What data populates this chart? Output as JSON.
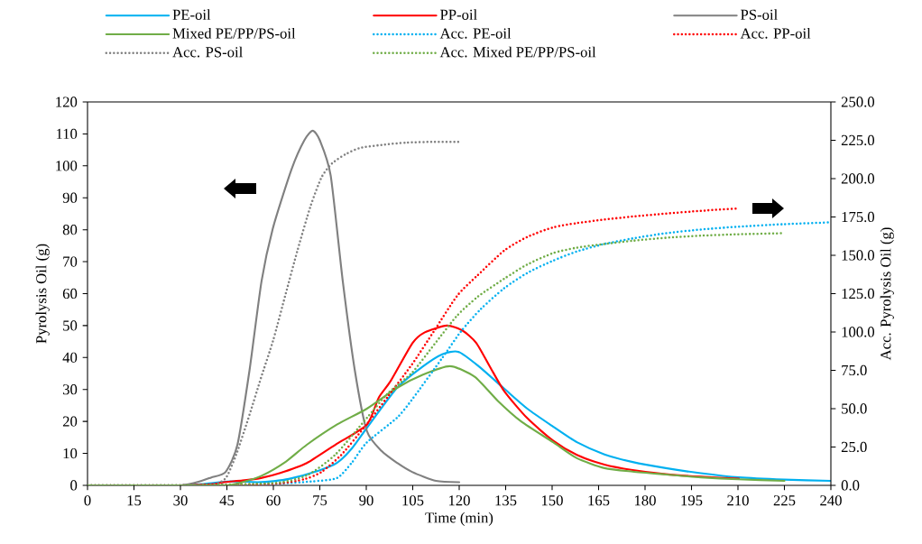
{
  "chart_data": {
    "type": "line",
    "xlabel": "Time (min)",
    "ylabel": "Pyrolysis Oil (g)",
    "y2label": "Acc. Pyrolysis Oil (g)",
    "legend": "top",
    "xlim": [
      0,
      240
    ],
    "xticks": [
      0,
      15,
      30,
      45,
      60,
      75,
      90,
      105,
      120,
      135,
      150,
      165,
      180,
      195,
      210,
      225,
      240
    ],
    "ylim": [
      0,
      120
    ],
    "yticks": [
      0,
      10,
      20,
      30,
      40,
      50,
      60,
      70,
      80,
      90,
      100,
      110,
      120
    ],
    "y2lim": [
      0,
      250
    ],
    "y2ticks": [
      {
        "value": 0,
        "label": "0.0"
      },
      {
        "value": 25,
        "label": "25.0"
      },
      {
        "value": 50,
        "label": "50.0"
      },
      {
        "value": 75,
        "label": "75.0"
      },
      {
        "value": 100,
        "label": "100.0"
      },
      {
        "value": 125,
        "label": "125.0"
      },
      {
        "value": 150,
        "label": "150.0"
      },
      {
        "value": 175,
        "label": "175.0"
      },
      {
        "value": 200,
        "label": "200.0"
      },
      {
        "value": 225,
        "label": "225.0"
      },
      {
        "value": 250,
        "label": "250.0"
      }
    ],
    "series": [
      {
        "name": "PE-oil",
        "color": "#00b0f0",
        "line_style": "solid",
        "x": [
          30,
          38,
          45,
          50,
          55,
          60,
          65,
          74.6,
          80.5,
          85.3,
          90.2,
          99.9,
          108,
          114.5,
          119.7,
          126,
          134.6,
          142,
          150.3,
          158,
          166.9,
          176,
          186.7,
          198,
          210.3,
          225,
          240
        ],
        "values": [
          0,
          0.5,
          1.2,
          1.2,
          1,
          1.3,
          2,
          4.6,
          7,
          11.5,
          18,
          30.5,
          37,
          41,
          41.8,
          37.5,
          30.2,
          24,
          18.4,
          13.5,
          9.7,
          7.3,
          5.4,
          3.8,
          2.5,
          1.8,
          1.4
        ]
      },
      {
        "name": "PP-oil",
        "color": "#ff0000",
        "line_style": "solid",
        "x": [
          30,
          40,
          44,
          50,
          56,
          62,
          70.8,
          80.5,
          90.2,
          94,
          97.9,
          104.9,
          108.9,
          116,
          121,
          125.5,
          130,
          134.6,
          142,
          150.3,
          158,
          166.9,
          176,
          186.7,
          198,
          210.3
        ],
        "values": [
          0,
          0.3,
          1,
          1.5,
          2.3,
          3.8,
          7,
          13,
          19,
          27.4,
          32.7,
          44.5,
          47.9,
          50,
          48.5,
          44.6,
          37,
          29.4,
          21,
          14,
          9.5,
          6.5,
          4.8,
          3.5,
          2.7,
          2.1
        ]
      },
      {
        "name": "PS-oil",
        "color": "#808080",
        "line_style": "solid",
        "x": [
          0,
          15,
          30,
          36.8,
          40,
          44.6,
          48.4,
          52.3,
          56.2,
          60,
          65.9,
          70,
          72.7,
          75,
          78.5,
          82.4,
          86.3,
          90.2,
          95,
          100,
          104.8,
          112.5,
          120
        ],
        "values": [
          0,
          0,
          0,
          1.4,
          2.5,
          4.2,
          12.7,
          36,
          64,
          81,
          99,
          108,
          111,
          108,
          97,
          64,
          36,
          17,
          10.7,
          7,
          4.2,
          1.4,
          1
        ]
      },
      {
        "name": "Mixed PE/PP/PS-oil",
        "color": "#70ad47",
        "line_style": "solid",
        "x": [
          0,
          15,
          30,
          45,
          50,
          56.2,
          64,
          70.8,
          80.5,
          90.2,
          99.9,
          108,
          117,
          125,
          132.5,
          140,
          150.3,
          158,
          166.9,
          176,
          186.7,
          198,
          210,
          225
        ],
        "values": [
          0,
          0,
          0,
          0,
          1,
          3,
          7.4,
          12.7,
          19,
          24,
          30.5,
          34.5,
          37.3,
          34,
          26.4,
          20,
          13.5,
          8.5,
          5.4,
          4.3,
          3.4,
          2.5,
          1.9,
          1.4
        ]
      },
      {
        "name": "Acc. PE-oil",
        "color": "#00b0f0",
        "line_style": "dotted",
        "axis": "y2",
        "x": [
          0,
          30,
          60,
          72,
          80.5,
          85.3,
          90.2,
          99.9,
          104.8,
          114.5,
          120.7,
          127,
          134.5,
          142,
          150.3,
          158,
          166.9,
          176,
          186.7,
          198,
          210.3,
          225,
          240
        ],
        "values": [
          0,
          0,
          1,
          2.5,
          4.7,
          14.7,
          28,
          44,
          56,
          83,
          100.7,
          115,
          128.5,
          138.5,
          146.5,
          152.5,
          157.4,
          161,
          164.4,
          166.8,
          168.7,
          170.3,
          171.5
        ]
      },
      {
        "name": "Acc. PP-oil",
        "color": "#ff0000",
        "line_style": "dotted",
        "axis": "y2",
        "x": [
          0,
          30,
          60,
          70,
          75.6,
          82,
          90.2,
          97,
          104.8,
          112,
          119.3,
          125.7,
          134.5,
          142,
          150.3,
          158,
          166.9,
          176,
          186.7,
          198,
          210.3
        ],
        "values": [
          0,
          0,
          1,
          4,
          8.8,
          20,
          40,
          58,
          79,
          101,
          123.5,
          136.5,
          153,
          162,
          168.2,
          171,
          173.3,
          175.3,
          177.2,
          179,
          180.6
        ]
      },
      {
        "name": "Acc. PS-oil",
        "color": "#808080",
        "line_style": "dotted",
        "axis": "y2",
        "x": [
          0,
          30,
          40,
          44.6,
          48,
          52.3,
          56,
          60,
          64,
          67.9,
          72,
          75.6,
          79,
          83.4,
          88,
          95,
          103,
          112,
          120
        ],
        "values": [
          0,
          0,
          0,
          4.7,
          20,
          46,
          70,
          95,
          125,
          154,
          182,
          201,
          210,
          216,
          220,
          222,
          223.5,
          224,
          224
        ]
      },
      {
        "name": "Acc. Mixed PE/PP/PS-oil",
        "color": "#70ad47",
        "line_style": "dotted",
        "axis": "y2",
        "x": [
          0,
          30,
          60,
          70.8,
          80,
          90.2,
          97,
          104.8,
          112,
          119.3,
          126,
          134.5,
          142,
          150.3,
          158,
          166.9,
          176,
          186.7,
          198,
          210,
          224.6
        ],
        "values": [
          0,
          0,
          1.5,
          6.5,
          20,
          44,
          60,
          73.5,
          92,
          110.6,
          123,
          134.7,
          144,
          151.4,
          155,
          157.4,
          159.5,
          161.4,
          162.8,
          163.7,
          164.4
        ]
      }
    ]
  }
}
